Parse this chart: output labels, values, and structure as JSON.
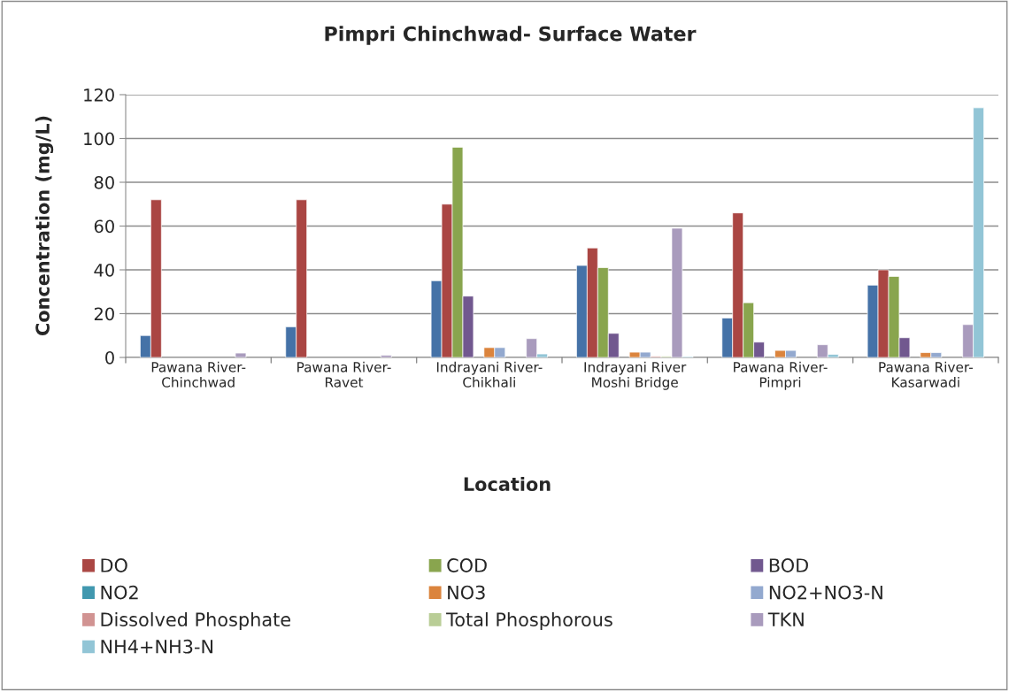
{
  "chart_data": {
    "type": "bar",
    "title": "Pimpri Chinchwad- Surface Water",
    "xlabel": "Location",
    "ylabel": "Concentration (mg/L)",
    "categories": [
      "Pawana River-\nChinchwad",
      "Pawana River-\nRavet",
      "Indrayani River-\nChikhali",
      "Indrayani River\nMoshi Bridge",
      "Pawana River-\nPimpri",
      "Pawana River-\nKasarwadi"
    ],
    "series": [
      {
        "color": "#4572a7",
        "values": [
          10,
          14,
          35,
          42,
          18,
          33
        ]
      },
      {
        "name": "DO",
        "color": "#aa4643",
        "values": [
          72,
          72,
          70,
          50,
          66,
          40
        ]
      },
      {
        "name": "COD",
        "color": "#89a54e",
        "values": [
          null,
          null,
          96,
          41,
          25,
          37
        ]
      },
      {
        "name": "BOD",
        "color": "#71588f",
        "values": [
          null,
          null,
          28,
          11,
          7,
          9
        ]
      },
      {
        "name": "NO2",
        "color": "#4198af",
        "values": [
          null,
          null,
          null,
          null,
          null,
          null
        ]
      },
      {
        "name": "NO3",
        "color": "#db843d",
        "values": [
          null,
          null,
          4.5,
          2.4,
          3.2,
          2.2
        ]
      },
      {
        "name": "NO2+NO3-N",
        "color": "#93a9cf",
        "values": [
          null,
          null,
          4.5,
          2.4,
          3.2,
          2.2
        ]
      },
      {
        "name": "Dissolved Phosphate",
        "color": "#d19392",
        "values": [
          null,
          null,
          null,
          0.5,
          null,
          null
        ]
      },
      {
        "name": "Total Phosphorous",
        "color": "#b9cd96",
        "values": [
          null,
          null,
          null,
          0.5,
          null,
          null
        ]
      },
      {
        "name": "TKN",
        "color": "#a99bbd",
        "values": [
          2,
          1,
          8.6,
          59,
          5.8,
          15
        ]
      },
      {
        "name": "NH4+NH3-N",
        "color": "#92c5d6",
        "values": [
          null,
          null,
          1.6,
          0.4,
          1.4,
          114
        ]
      }
    ],
    "ylim": [
      0,
      120
    ],
    "yticks": [
      0,
      20,
      40,
      60,
      80,
      100,
      120
    ],
    "grid": "y",
    "legend": "bottom"
  }
}
